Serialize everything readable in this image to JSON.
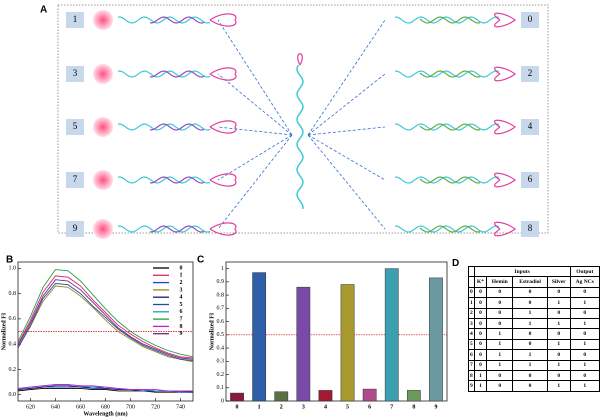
{
  "diagram": {
    "panel": "A",
    "left_labels": [
      "1",
      "3",
      "5",
      "7",
      "9"
    ],
    "right_labels": [
      "0",
      "2",
      "4",
      "6",
      "8"
    ]
  },
  "chart_data": [
    {
      "type": "line",
      "panel": "B",
      "xlabel": "Wavelength (nm)",
      "ylabel": "Normalized FI",
      "x": [
        610,
        620,
        630,
        640,
        650,
        660,
        670,
        680,
        690,
        700,
        710,
        720,
        730,
        740,
        750
      ],
      "xlim": [
        610,
        750
      ],
      "xticks": [
        620,
        640,
        660,
        680,
        700,
        720,
        740
      ],
      "ylim": [
        -0.05,
        1.05
      ],
      "yticks": [
        {
          "value": 0,
          "label": "0.0"
        },
        0.2,
        0.4,
        0.6,
        0.8,
        {
          "value": 1,
          "label": "1.0"
        }
      ],
      "threshold": 0.5,
      "threshold_color": "#d00000",
      "legend": "upper right",
      "series": [
        {
          "name": "0",
          "color": "#000000",
          "values": [
            0.03,
            0.04,
            0.05,
            0.05,
            0.05,
            0.05,
            0.04,
            0.04,
            0.03,
            0.03,
            0.03,
            0.02,
            0.02,
            0.02,
            0.02
          ]
        },
        {
          "name": "1",
          "color": "#e0206e",
          "values": [
            0.4,
            0.59,
            0.81,
            0.94,
            0.93,
            0.86,
            0.75,
            0.65,
            0.55,
            0.48,
            0.42,
            0.37,
            0.33,
            0.3,
            0.29
          ]
        },
        {
          "name": "2",
          "color": "#2040d0",
          "values": [
            0.04,
            0.05,
            0.06,
            0.06,
            0.06,
            0.06,
            0.05,
            0.05,
            0.04,
            0.04,
            0.03,
            0.03,
            0.03,
            0.02,
            0.02
          ]
        },
        {
          "name": "3",
          "color": "#9a8a20",
          "values": [
            0.37,
            0.54,
            0.74,
            0.86,
            0.85,
            0.78,
            0.69,
            0.59,
            0.5,
            0.44,
            0.38,
            0.34,
            0.3,
            0.28,
            0.26
          ]
        },
        {
          "name": "4",
          "color": "#1a1a70",
          "values": [
            0.04,
            0.05,
            0.06,
            0.07,
            0.07,
            0.06,
            0.06,
            0.05,
            0.04,
            0.04,
            0.04,
            0.03,
            0.03,
            0.03,
            0.02
          ]
        },
        {
          "name": "5",
          "color": "#2a4aa0",
          "values": [
            0.37,
            0.55,
            0.76,
            0.88,
            0.87,
            0.8,
            0.7,
            0.61,
            0.52,
            0.45,
            0.39,
            0.35,
            0.31,
            0.28,
            0.27
          ]
        },
        {
          "name": "6",
          "color": "#20a0c0",
          "values": [
            0.05,
            0.06,
            0.07,
            0.08,
            0.08,
            0.07,
            0.06,
            0.06,
            0.05,
            0.04,
            0.04,
            0.03,
            0.03,
            0.03,
            0.03
          ]
        },
        {
          "name": "7",
          "color": "#20a040",
          "values": [
            0.42,
            0.62,
            0.85,
            0.99,
            0.98,
            0.9,
            0.79,
            0.68,
            0.58,
            0.5,
            0.44,
            0.39,
            0.35,
            0.32,
            0.3
          ]
        },
        {
          "name": "8",
          "color": "#c020c0",
          "values": [
            0.05,
            0.06,
            0.07,
            0.08,
            0.08,
            0.07,
            0.07,
            0.06,
            0.05,
            0.04,
            0.04,
            0.04,
            0.03,
            0.03,
            0.03
          ]
        },
        {
          "name": "9",
          "color": "#6a2a80",
          "values": [
            0.39,
            0.57,
            0.78,
            0.91,
            0.9,
            0.83,
            0.73,
            0.63,
            0.53,
            0.46,
            0.4,
            0.36,
            0.32,
            0.29,
            0.28
          ]
        }
      ]
    },
    {
      "type": "bar",
      "panel": "C",
      "ylabel": "Normalized FI",
      "categories": [
        "0",
        "1",
        "2",
        "3",
        "4",
        "5",
        "6",
        "7",
        "8",
        "9"
      ],
      "values": [
        0.06,
        0.97,
        0.07,
        0.86,
        0.08,
        0.88,
        0.09,
        1.0,
        0.08,
        0.93
      ],
      "colors": [
        "#8b1a3a",
        "#2f5fa8",
        "#5a7040",
        "#7a4aa8",
        "#a01a30",
        "#a89a30",
        "#b04a8a",
        "#3aa0b0",
        "#6a9a5a",
        "#6a9aa0"
      ],
      "ylim": [
        0,
        1.05
      ],
      "yticks": [
        0,
        0.1,
        0.2,
        0.3,
        0.4,
        0.5,
        0.6,
        0.7,
        0.8,
        0.9,
        1
      ],
      "threshold": 0.5,
      "threshold_color": "#d00000"
    }
  ],
  "table": {
    "panel": "D",
    "groups": [
      "Inputs",
      "Output"
    ],
    "columns": [
      "K⁺",
      "Hemin",
      "Estradiol",
      "Silver",
      "Ag NCs"
    ],
    "rows": [
      [
        0,
        0,
        0,
        0,
        0,
        0
      ],
      [
        1,
        0,
        0,
        0,
        1,
        1
      ],
      [
        2,
        0,
        0,
        1,
        0,
        0
      ],
      [
        3,
        0,
        0,
        1,
        1,
        1
      ],
      [
        4,
        0,
        1,
        0,
        0,
        0
      ],
      [
        5,
        0,
        1,
        0,
        1,
        1
      ],
      [
        6,
        0,
        1,
        1,
        0,
        0
      ],
      [
        7,
        0,
        1,
        1,
        1,
        1
      ],
      [
        8,
        1,
        0,
        0,
        0,
        0
      ],
      [
        9,
        1,
        0,
        0,
        1,
        1
      ]
    ]
  }
}
